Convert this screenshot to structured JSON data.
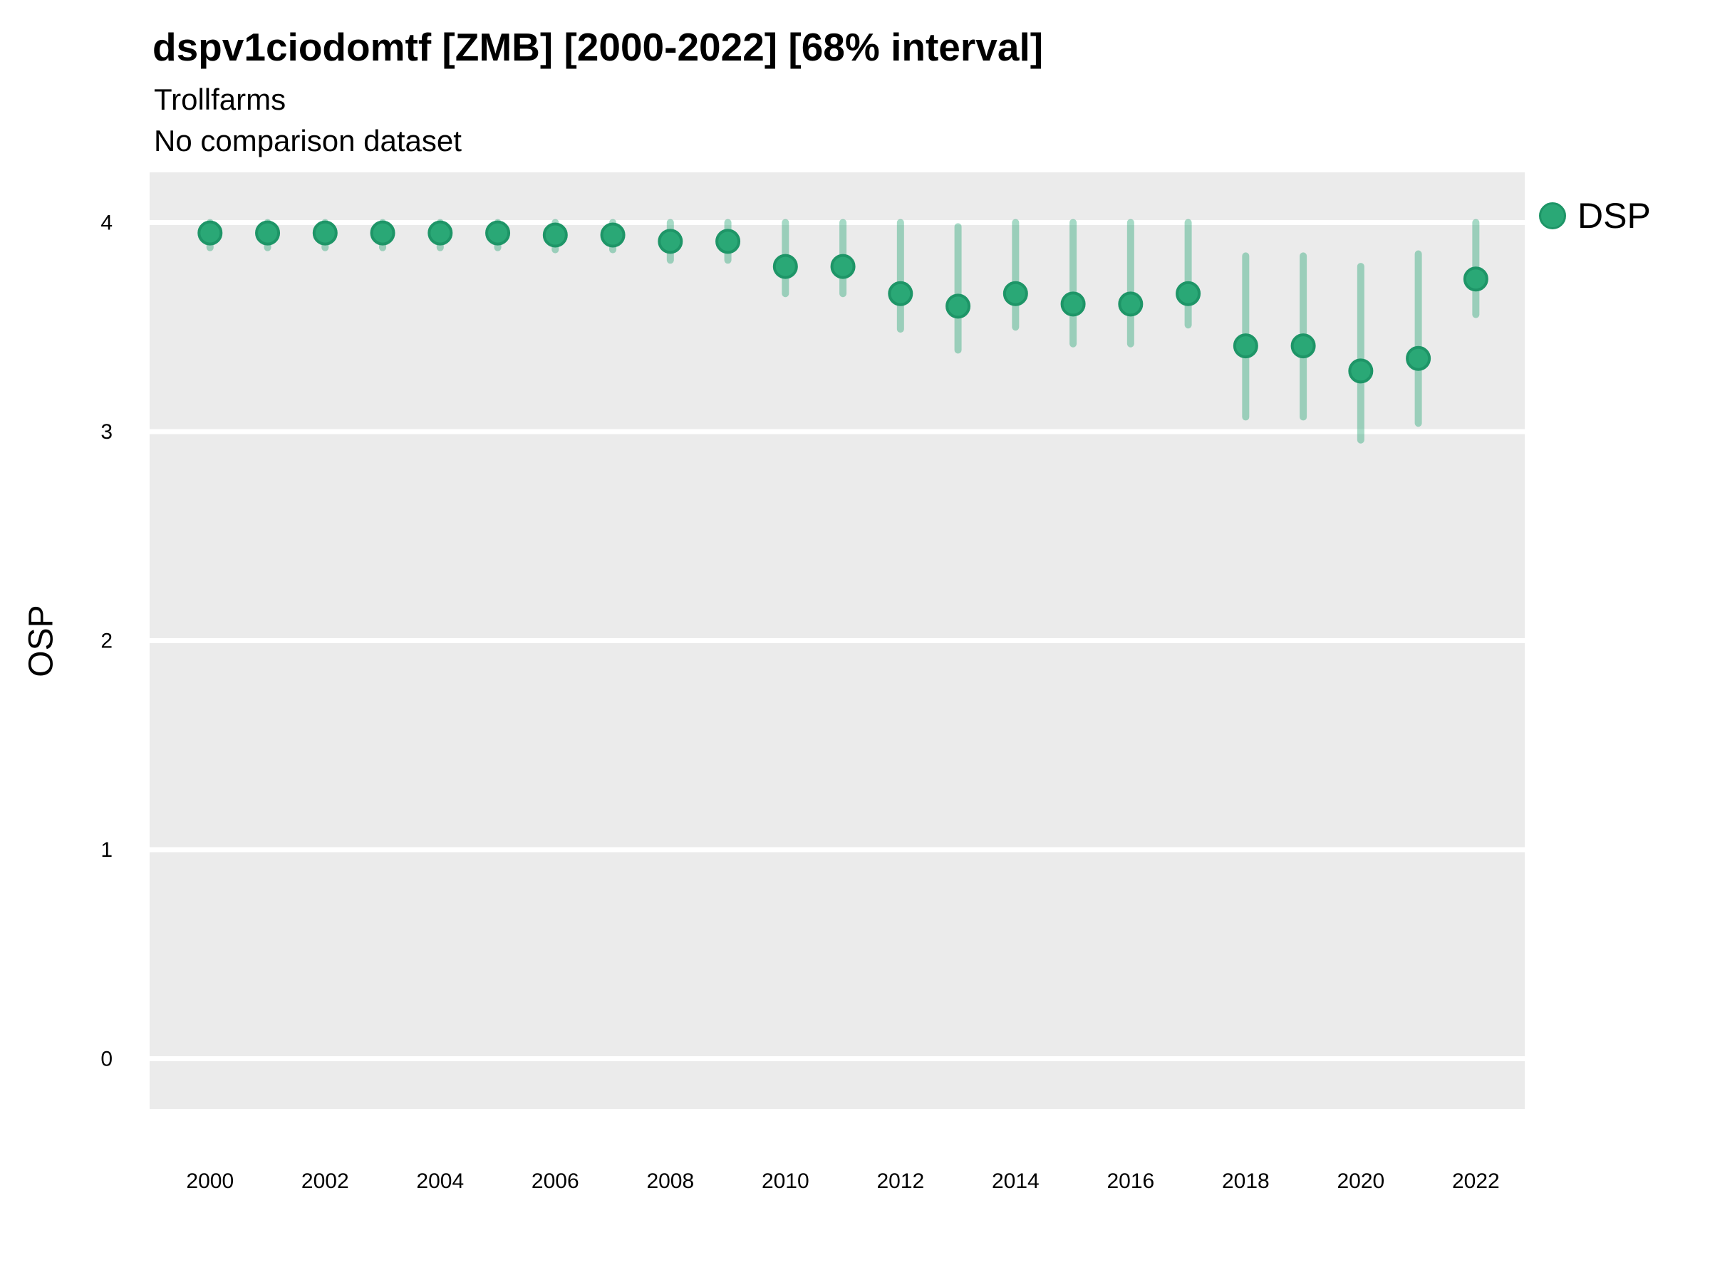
{
  "legend": {
    "label": "DSP"
  },
  "colors": {
    "page_bg": "#FFFFFF",
    "panel_bg": "#EBEBEB",
    "grid": "#FFFFFF",
    "marker_fill": "#2AA876",
    "marker_stroke": "#1E9567",
    "interval_bar": "rgba(42,168,118,0.42)",
    "text": "#000000"
  },
  "chart_data": {
    "type": "scatter",
    "title": "dspv1ciodomtf [ZMB] [2000-2022] [68% interval]",
    "subtitle": "Trollfarms",
    "note": "No comparison dataset",
    "interval_label": "68% interval",
    "xlabel": "",
    "ylabel": "OSP",
    "xlim": [
      1998.95,
      2022.85
    ],
    "ylim": [
      -0.24,
      4.24
    ],
    "y_ticks": [
      0,
      1,
      2,
      3,
      4
    ],
    "x_ticks": [
      2000,
      2002,
      2004,
      2006,
      2008,
      2010,
      2012,
      2014,
      2016,
      2018,
      2020,
      2022
    ],
    "grid": "horizontal major gridlines only, white on gray panel",
    "legend_position": "top-right outside panel",
    "series": [
      {
        "name": "DSP",
        "x": [
          2000,
          2001,
          2002,
          2003,
          2004,
          2005,
          2006,
          2007,
          2008,
          2009,
          2010,
          2011,
          2012,
          2013,
          2014,
          2015,
          2016,
          2017,
          2018,
          2019,
          2020,
          2021,
          2022
        ],
        "y": [
          3.95,
          3.95,
          3.95,
          3.95,
          3.95,
          3.95,
          3.94,
          3.94,
          3.91,
          3.91,
          3.79,
          3.79,
          3.66,
          3.6,
          3.66,
          3.61,
          3.61,
          3.66,
          3.41,
          3.41,
          3.29,
          3.35,
          3.73
        ],
        "lower": [
          3.88,
          3.88,
          3.88,
          3.88,
          3.88,
          3.88,
          3.87,
          3.87,
          3.82,
          3.82,
          3.66,
          3.66,
          3.49,
          3.39,
          3.5,
          3.42,
          3.42,
          3.51,
          3.07,
          3.07,
          2.96,
          3.04,
          3.56
        ],
        "upper": [
          4.0,
          4.0,
          4.0,
          4.0,
          4.0,
          4.0,
          4.0,
          4.0,
          4.0,
          4.0,
          4.0,
          4.0,
          4.0,
          3.98,
          4.0,
          4.0,
          4.0,
          4.0,
          3.84,
          3.84,
          3.79,
          3.85,
          4.0
        ]
      }
    ]
  }
}
